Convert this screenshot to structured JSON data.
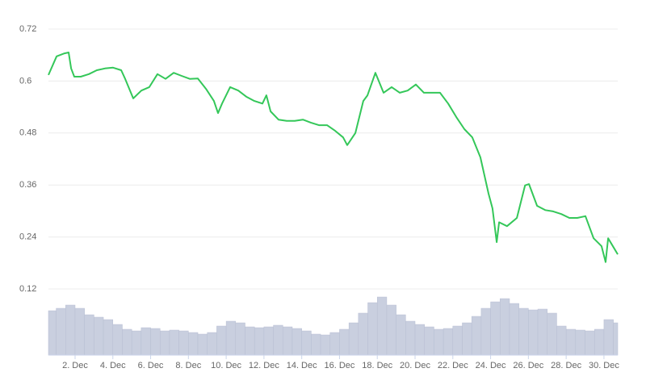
{
  "chart_data": {
    "type": "line",
    "color": "#34c759",
    "x": [
      0.59,
      1.02,
      1.44,
      1.66,
      1.79,
      1.96,
      2.3,
      2.73,
      3.15,
      3.58,
      4.01,
      4.44,
      4.65,
      5.08,
      5.51,
      5.93,
      6.36,
      6.79,
      7.22,
      7.64,
      8.07,
      8.5,
      8.93,
      9.35,
      9.57,
      9.78,
      10.21,
      10.64,
      11.06,
      11.49,
      11.92,
      12.13,
      12.35,
      12.77,
      13.2,
      13.63,
      14.06,
      14.48,
      14.91,
      15.34,
      15.77,
      16.19,
      16.41,
      16.84,
      17.26,
      17.48,
      17.9,
      18.33,
      18.76,
      19.19,
      19.61,
      20.04,
      20.47,
      20.9,
      21.32,
      21.75,
      22.18,
      22.61,
      23.03,
      23.46,
      23.89,
      24.1,
      24.32,
      24.45,
      24.87,
      25.39,
      25.82,
      26.03,
      26.46,
      26.89,
      27.31,
      27.74,
      28.17,
      28.59,
      29.02,
      29.45,
      29.87,
      30.09,
      30.22,
      30.73
    ],
    "values": [
      0.614,
      0.657,
      0.664,
      0.666,
      0.629,
      0.61,
      0.61,
      0.616,
      0.625,
      0.629,
      0.631,
      0.625,
      0.605,
      0.56,
      0.578,
      0.586,
      0.616,
      0.605,
      0.619,
      0.612,
      0.605,
      0.606,
      0.582,
      0.554,
      0.526,
      0.548,
      0.586,
      0.578,
      0.564,
      0.554,
      0.548,
      0.567,
      0.53,
      0.511,
      0.508,
      0.508,
      0.511,
      0.504,
      0.498,
      0.498,
      0.485,
      0.47,
      0.452,
      0.48,
      0.554,
      0.567,
      0.619,
      0.573,
      0.586,
      0.573,
      0.578,
      0.592,
      0.573,
      0.573,
      0.573,
      0.548,
      0.517,
      0.489,
      0.47,
      0.424,
      0.34,
      0.306,
      0.228,
      0.274,
      0.265,
      0.284,
      0.359,
      0.362,
      0.312,
      0.302,
      0.299,
      0.293,
      0.284,
      0.284,
      0.288,
      0.237,
      0.219,
      0.182,
      0.237,
      0.2
    ],
    "xlim": [
      0.59,
      30.73
    ],
    "ylim": [
      0.12,
      0.72
    ],
    "yticks": [
      0.12,
      0.24,
      0.36,
      0.48,
      0.6,
      0.72
    ],
    "xticks": [
      {
        "value": 2,
        "label": "2. Dec"
      },
      {
        "value": 4,
        "label": "4. Dec"
      },
      {
        "value": 6,
        "label": "6. Dec"
      },
      {
        "value": 8,
        "label": "8. Dec"
      },
      {
        "value": 10,
        "label": "10. Dec"
      },
      {
        "value": 12,
        "label": "12. Dec"
      },
      {
        "value": 14,
        "label": "14. Dec"
      },
      {
        "value": 16,
        "label": "16. Dec"
      },
      {
        "value": 18,
        "label": "18. Dec"
      },
      {
        "value": 20,
        "label": "20. Dec"
      },
      {
        "value": 22,
        "label": "22. Dec"
      },
      {
        "value": 24,
        "label": "24. Dec"
      },
      {
        "value": 26,
        "label": "26. Dec"
      },
      {
        "value": 28,
        "label": "28. Dec"
      },
      {
        "value": 30,
        "label": "30. Dec"
      }
    ],
    "grid": true,
    "volume": {
      "type": "bar",
      "color": "#c9cfdf",
      "lim": [
        0,
        80
      ],
      "x": [
        0.75,
        1.25,
        1.75,
        2.25,
        2.75,
        3.25,
        3.75,
        4.25,
        4.75,
        5.25,
        5.75,
        6.25,
        6.75,
        7.25,
        7.75,
        8.25,
        8.75,
        9.25,
        9.75,
        10.25,
        10.75,
        11.25,
        11.75,
        12.25,
        12.75,
        13.25,
        13.75,
        14.25,
        14.75,
        15.25,
        15.75,
        16.25,
        16.75,
        17.25,
        17.75,
        18.25,
        18.75,
        19.25,
        19.75,
        20.25,
        20.75,
        21.25,
        21.75,
        22.25,
        22.75,
        23.25,
        23.75,
        24.25,
        24.75,
        25.25,
        25.75,
        26.25,
        26.75,
        27.25,
        27.75,
        28.25,
        28.75,
        29.25,
        29.75,
        30.25,
        30.75
      ],
      "values": [
        55,
        58,
        62,
        58,
        50,
        47,
        44,
        38,
        32,
        30,
        34,
        33,
        30,
        31,
        30,
        28,
        26,
        28,
        36,
        42,
        40,
        35,
        34,
        35,
        37,
        35,
        33,
        30,
        26,
        25,
        28,
        32,
        40,
        52,
        65,
        72,
        62,
        50,
        42,
        38,
        35,
        32,
        33,
        36,
        40,
        48,
        58,
        66,
        70,
        64,
        58,
        56,
        57,
        52,
        36,
        32,
        31,
        30,
        32,
        44,
        40
      ]
    }
  }
}
